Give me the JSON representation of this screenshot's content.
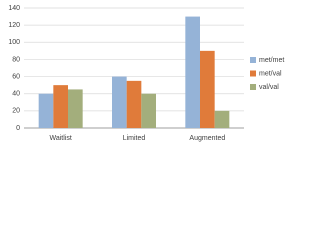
{
  "chart_data": {
    "type": "bar",
    "categories": [
      "Waitlist",
      "Limited",
      "Augmented"
    ],
    "series": [
      {
        "name": "met/met",
        "color": "#95b3d7",
        "values": [
          40,
          60,
          130
        ]
      },
      {
        "name": "met/val",
        "color": "#e07b3a",
        "values": [
          50,
          55,
          90
        ]
      },
      {
        "name": "val/val",
        "color": "#a3ae7c",
        "values": [
          45,
          40,
          20
        ]
      }
    ],
    "ylim": [
      0,
      140
    ],
    "yticks": [
      0,
      20,
      40,
      60,
      80,
      100,
      120,
      140
    ],
    "grid": true,
    "legend": "right"
  }
}
